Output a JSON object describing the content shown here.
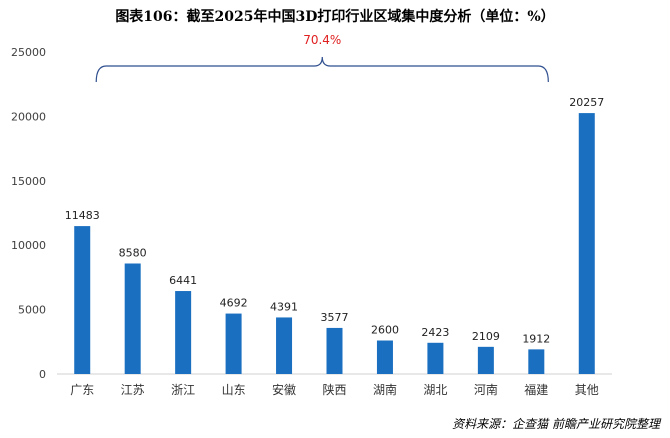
{
  "chart_data": {
    "type": "bar",
    "title": "图表106：截至2025年中国3D打印行业区域集中度分析（单位：%）",
    "categories": [
      "广东",
      "江苏",
      "浙江",
      "山东",
      "安徽",
      "陕西",
      "湖南",
      "湖北",
      "河南",
      "福建",
      "其他"
    ],
    "values": [
      11483,
      8580,
      6441,
      4692,
      4391,
      3577,
      2600,
      2423,
      2109,
      1912,
      20257
    ],
    "ylim": [
      0,
      25000
    ],
    "yticks": [
      0,
      5000,
      10000,
      15000,
      20000,
      25000
    ],
    "grid": false,
    "legend": "none",
    "bar_color": "#1a6fc1",
    "annotation": {
      "text": "70.4%",
      "color": "#e02020",
      "brace_from_category": "广东",
      "brace_to_category": "福建"
    },
    "source": "资料来源：企查猫 前瞻产业研究院整理"
  }
}
